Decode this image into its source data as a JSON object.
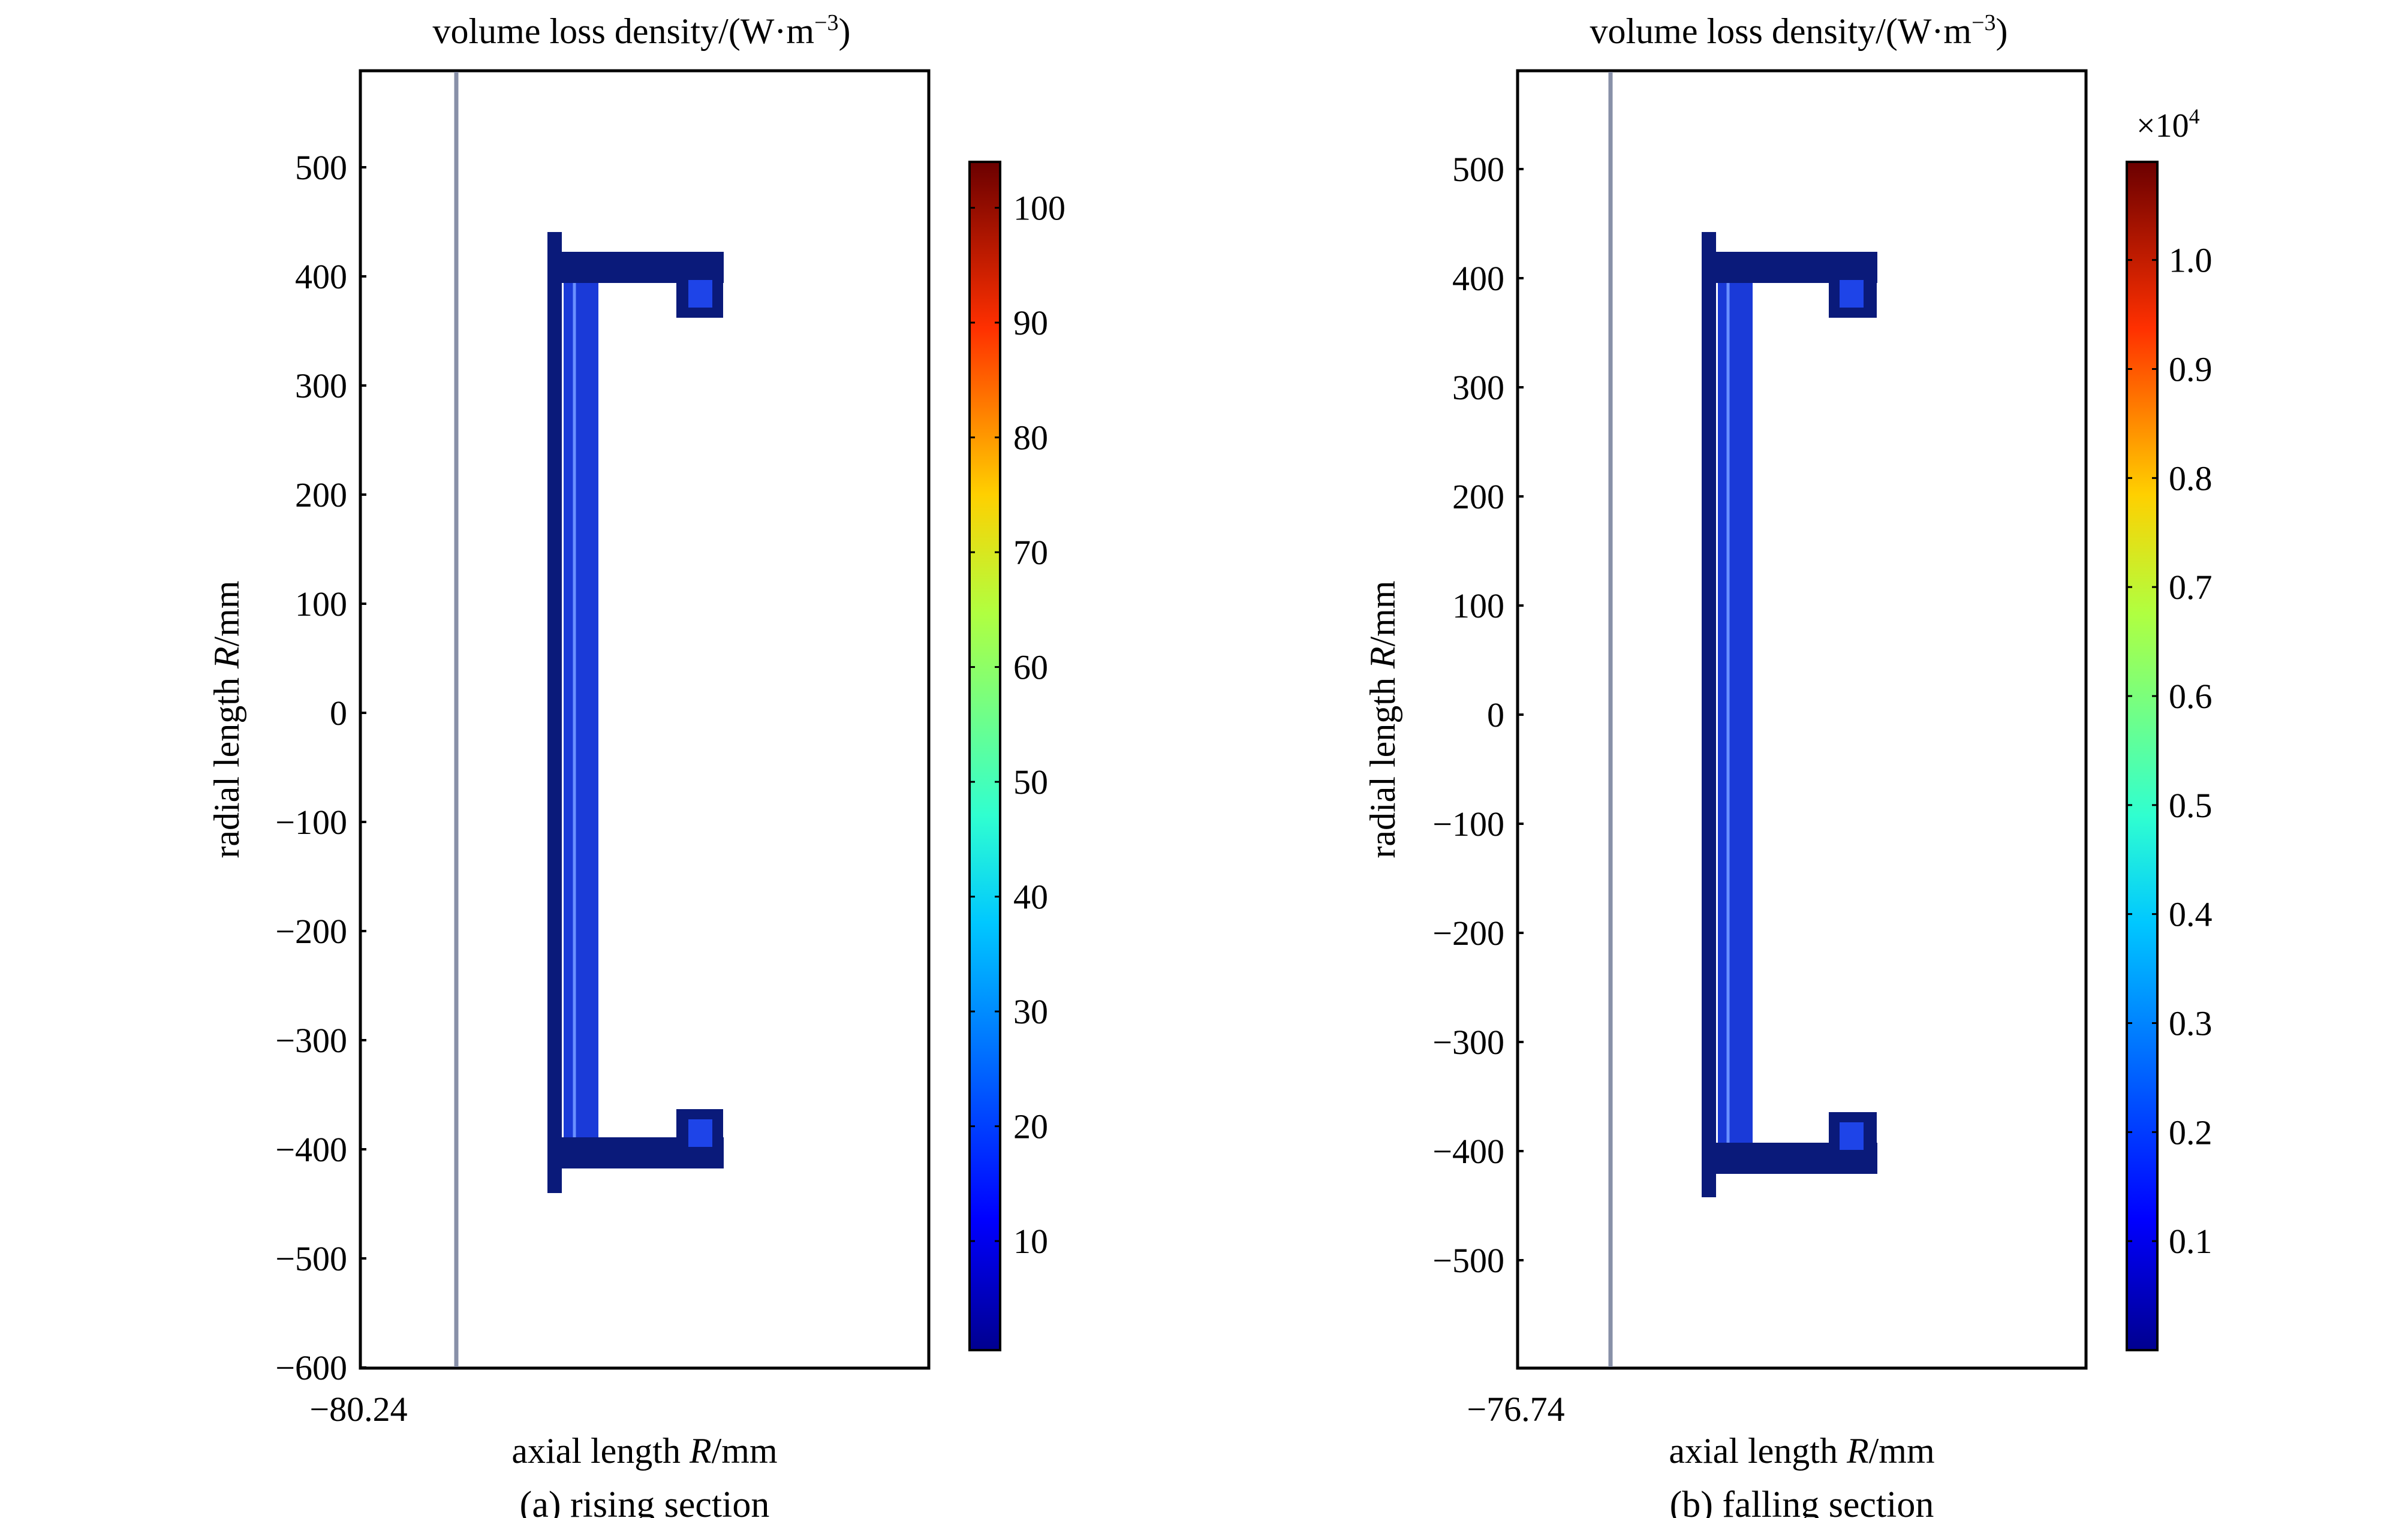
{
  "panels": [
    {
      "title": "volume loss density/(W·m",
      "title_sup": "−3",
      "title_close": ")",
      "ylabel_pre": "radial length ",
      "ylabel_it": "R",
      "ylabel_post": "/mm",
      "xlabel_pre": "axial length ",
      "xlabel_it": "R",
      "xlabel_post": "/mm",
      "caption": "(a) rising section",
      "x_tick": "−80.24",
      "y_ticks": [
        {
          "value": 500,
          "label": "500"
        },
        {
          "value": 400,
          "label": "400"
        },
        {
          "value": 300,
          "label": "300"
        },
        {
          "value": 200,
          "label": "200"
        },
        {
          "value": 100,
          "label": "100"
        },
        {
          "value": 0,
          "label": "0"
        },
        {
          "value": -100,
          "label": "−100"
        },
        {
          "value": -200,
          "label": "−200"
        },
        {
          "value": -300,
          "label": "−300"
        },
        {
          "value": -400,
          "label": "−400"
        },
        {
          "value": -500,
          "label": "−500"
        },
        {
          "value": -600,
          "label": "−600"
        }
      ],
      "colorbar_multiplier": "",
      "colorbar_ticks": [
        {
          "value": 10,
          "label": "10"
        },
        {
          "value": 20,
          "label": "20"
        },
        {
          "value": 30,
          "label": "30"
        },
        {
          "value": 40,
          "label": "40"
        },
        {
          "value": 50,
          "label": "50"
        },
        {
          "value": 60,
          "label": "60"
        },
        {
          "value": 70,
          "label": "70"
        },
        {
          "value": 80,
          "label": "80"
        },
        {
          "value": 90,
          "label": "90"
        },
        {
          "value": 100,
          "label": "100"
        }
      ]
    },
    {
      "title": "volume loss density/(W·m",
      "title_sup": "−3",
      "title_close": ")",
      "ylabel_pre": "radial length ",
      "ylabel_it": "R",
      "ylabel_post": "/mm",
      "xlabel_pre": "axial length ",
      "xlabel_it": "R",
      "xlabel_post": "/mm",
      "caption": "(b) falling section",
      "x_tick": "−76.74",
      "y_ticks": [
        {
          "value": 500,
          "label": "500"
        },
        {
          "value": 400,
          "label": "400"
        },
        {
          "value": 300,
          "label": "300"
        },
        {
          "value": 200,
          "label": "200"
        },
        {
          "value": 100,
          "label": "100"
        },
        {
          "value": 0,
          "label": "0"
        },
        {
          "value": -100,
          "label": "−100"
        },
        {
          "value": -200,
          "label": "−200"
        },
        {
          "value": -300,
          "label": "−300"
        },
        {
          "value": -400,
          "label": "−400"
        },
        {
          "value": -500,
          "label": "−500"
        }
      ],
      "colorbar_multiplier": "×10",
      "colorbar_multiplier_sup": "4",
      "colorbar_ticks": [
        {
          "value": 0.1,
          "label": "0.1"
        },
        {
          "value": 0.2,
          "label": "0.2"
        },
        {
          "value": 0.3,
          "label": "0.3"
        },
        {
          "value": 0.4,
          "label": "0.4"
        },
        {
          "value": 0.5,
          "label": "0.5"
        },
        {
          "value": 0.6,
          "label": "0.6"
        },
        {
          "value": 0.7,
          "label": "0.7"
        },
        {
          "value": 0.8,
          "label": "0.8"
        },
        {
          "value": 0.9,
          "label": "0.9"
        },
        {
          "value": 1.0,
          "label": "1.0"
        }
      ]
    }
  ],
  "chart_data": [
    {
      "type": "heatmap",
      "title": "volume loss density/(W·m−3)",
      "xlabel": "axial length R/mm",
      "ylabel": "radial length R/mm",
      "caption": "(a) rising section",
      "x_tick": -80.24,
      "ylim": [
        -600,
        590
      ],
      "y_ticks": [
        500,
        400,
        300,
        200,
        100,
        0,
        -100,
        -200,
        -300,
        -400,
        -500,
        -600
      ],
      "colorbar": {
        "ticks": [
          10,
          20,
          30,
          40,
          50,
          60,
          70,
          80,
          90,
          100
        ],
        "colormap": "jet",
        "color_colors": [
          "#00008f",
          "#0000ff",
          "#00ffff",
          "#ffff00",
          "#ff0000",
          "#800000"
        ]
      },
      "structure": "C-shaped conductor cross-section, low loss density (blue) throughout"
    },
    {
      "type": "heatmap",
      "title": "volume loss density/(W·m−3)",
      "xlabel": "axial length R/mm",
      "ylabel": "radial length R/mm",
      "caption": "(b) falling section",
      "x_tick": -76.74,
      "ylim": [
        -600,
        590
      ],
      "y_ticks": [
        500,
        400,
        300,
        200,
        100,
        0,
        -100,
        -200,
        -300,
        -400,
        -500
      ],
      "colorbar": {
        "multiplier": "×10^4",
        "ticks": [
          0.1,
          0.2,
          0.3,
          0.4,
          0.5,
          0.6,
          0.7,
          0.8,
          0.9,
          1.0
        ],
        "colormap": "jet"
      },
      "structure": "C-shaped conductor cross-section, low loss density (blue) throughout"
    }
  ],
  "colors": {
    "structure_dark": "#0a1a7a",
    "structure_mid": "#1a3ad8",
    "structure_light": "#2a55e8",
    "axis_line": "#8890a8"
  }
}
